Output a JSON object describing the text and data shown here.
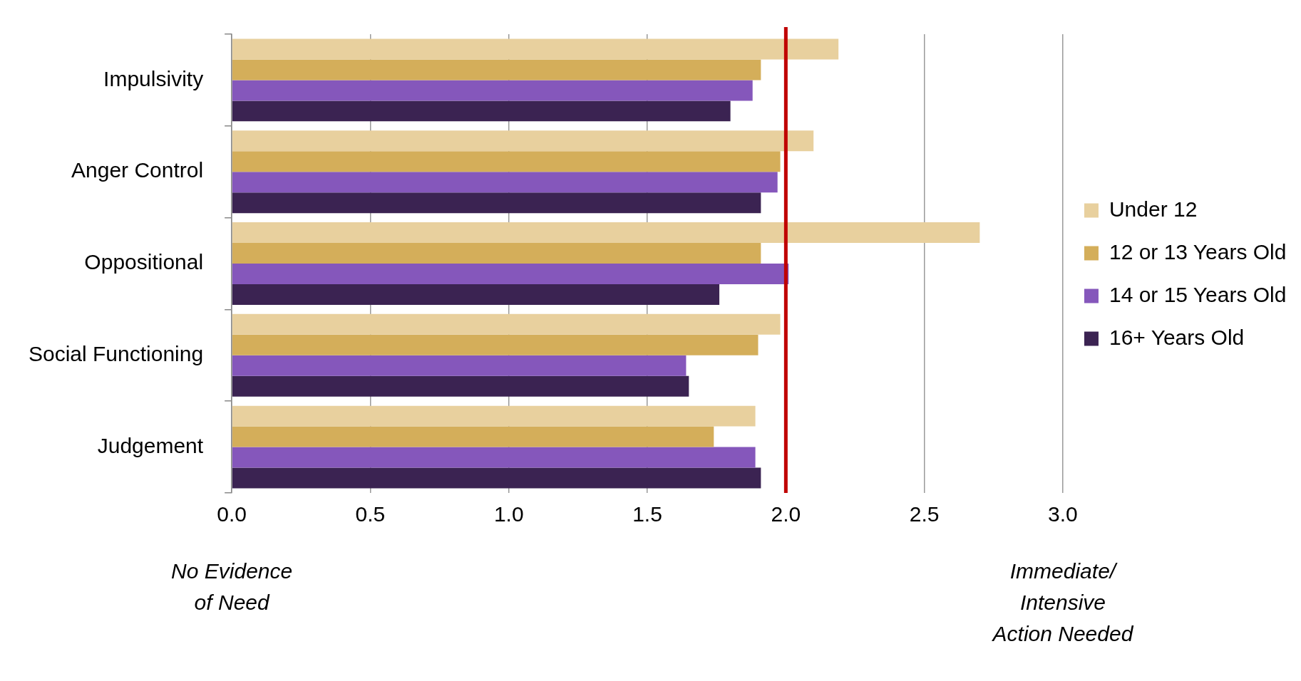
{
  "chart_data": {
    "type": "bar",
    "orientation": "horizontal",
    "categories": [
      "Impulsivity",
      "Anger Control",
      "Oppositional",
      "Social Functioning",
      "Judgement"
    ],
    "series": [
      {
        "name": "Under 12",
        "color": "#e8d09e",
        "values": [
          2.19,
          2.1,
          2.7,
          1.98,
          1.89
        ]
      },
      {
        "name": "12 or 13 Years Old",
        "color": "#d4ae5a",
        "values": [
          1.91,
          1.98,
          1.91,
          1.9,
          1.74
        ]
      },
      {
        "name": "14 or 15 Years Old",
        "color": "#8557bb",
        "values": [
          1.88,
          1.97,
          2.01,
          1.64,
          1.89
        ]
      },
      {
        "name": "16+ Years Old",
        "color": "#3b2352",
        "values": [
          1.8,
          1.91,
          1.76,
          1.65,
          1.91
        ]
      }
    ],
    "xlim": [
      0,
      3
    ],
    "xticks": [
      {
        "value": 0,
        "label": "0.0"
      },
      {
        "value": 0.5,
        "label": "0.5"
      },
      {
        "value": 1,
        "label": "1.0"
      },
      {
        "value": 1.5,
        "label": "1.5"
      },
      {
        "value": 2,
        "label": "2.0"
      },
      {
        "value": 2.5,
        "label": "2.5"
      },
      {
        "value": 3,
        "label": "3.0"
      }
    ],
    "grid": "x",
    "legend": "right",
    "ref_lines": [
      {
        "axis": "x",
        "value": 2,
        "color": "#c00000"
      }
    ],
    "annotations": [
      "No Evidence\nof Need",
      "Immediate/\nIntensive\nAction Needed"
    ]
  }
}
